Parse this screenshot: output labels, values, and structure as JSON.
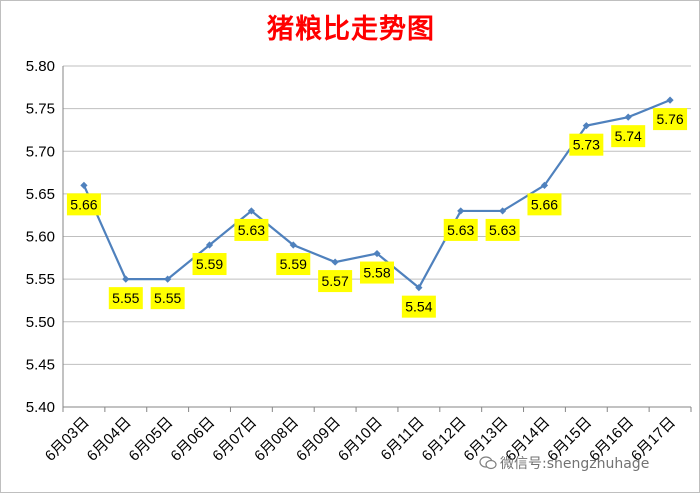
{
  "chart_data": {
    "type": "line",
    "title": "猪粮比走势图",
    "xlabel": "",
    "ylabel": "",
    "categories": [
      "6月03日",
      "6月04日",
      "6月05日",
      "6月06日",
      "6月07日",
      "6月08日",
      "6月09日",
      "6月10日",
      "6月11日",
      "6月12日",
      "6月13日",
      "6月14日",
      "6月15日",
      "6月16日",
      "6月17日"
    ],
    "series": [
      {
        "values": [
          5.66,
          5.55,
          5.55,
          5.59,
          5.63,
          5.59,
          5.57,
          5.58,
          5.54,
          5.63,
          5.63,
          5.66,
          5.73,
          5.74,
          5.76
        ]
      }
    ],
    "data_labels": [
      "5.66",
      "5.55",
      "5.55",
      "5.59",
      "5.63",
      "5.59",
      "5.57",
      "5.58",
      "5.54",
      "5.63",
      "5.63",
      "5.66",
      "5.73",
      "5.74",
      "5.76"
    ],
    "ylim": [
      5.4,
      5.8
    ],
    "yticks": [
      "5.80",
      "5.75",
      "5.70",
      "5.65",
      "5.60",
      "5.55",
      "5.50",
      "5.45",
      "5.40"
    ],
    "grid": true,
    "legend": "none",
    "line_color": "#4f81bd",
    "label_bg_color": "#ffff00"
  },
  "watermark": {
    "text": "微信号:shengzhuhage"
  }
}
